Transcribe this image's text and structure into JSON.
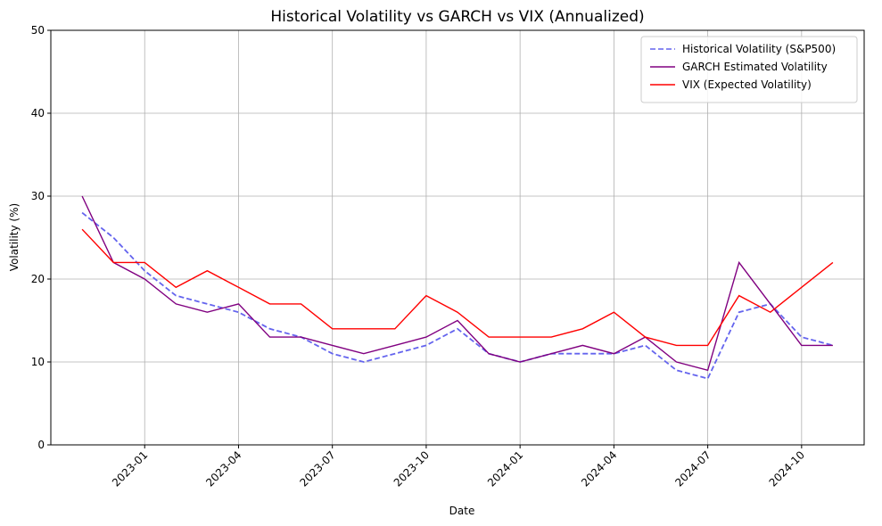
{
  "chart_data": {
    "type": "line",
    "title": "Historical Volatility vs GARCH vs VIX (Annualized)",
    "x_label": "Date",
    "y_label": "Volatility (%)",
    "x": [
      "2022-11",
      "2022-12",
      "2023-01",
      "2023-02",
      "2023-03",
      "2023-04",
      "2023-05",
      "2023-06",
      "2023-07",
      "2023-08",
      "2023-09",
      "2023-10",
      "2023-11",
      "2023-12",
      "2024-01",
      "2024-02",
      "2024-03",
      "2024-04",
      "2024-05",
      "2024-06",
      "2024-07",
      "2024-08",
      "2024-09",
      "2024-10",
      "2024-11"
    ],
    "series": [
      {
        "name": "Historical Volatility (S&P500)",
        "color": "#6464ee",
        "linestyle": "dashed",
        "values": [
          28,
          25,
          21,
          18,
          17,
          16,
          14,
          13,
          11,
          10,
          11,
          12,
          14,
          11,
          10,
          11,
          11,
          11,
          12,
          9,
          8,
          16,
          17,
          13,
          12
        ]
      },
      {
        "name": "GARCH Estimated Volatility",
        "color": "#800080",
        "linestyle": "solid",
        "values": [
          30,
          22,
          20,
          17,
          16,
          17,
          13,
          13,
          12,
          11,
          12,
          13,
          15,
          11,
          10,
          11,
          12,
          11,
          13,
          10,
          9,
          22,
          17,
          12,
          12
        ]
      },
      {
        "name": "VIX (Expected Volatility)",
        "color": "#ff0000",
        "linestyle": "solid",
        "values": [
          26,
          22,
          22,
          19,
          21,
          19,
          17,
          17,
          14,
          14,
          14,
          18,
          16,
          13,
          13,
          13,
          14,
          16,
          13,
          12,
          12,
          18,
          16,
          19,
          22
        ]
      }
    ],
    "xlim": [
      "2022-10",
      "2024-12"
    ],
    "xticks": [
      "2023-01",
      "2023-04",
      "2023-07",
      "2023-10",
      "2024-01",
      "2024-04",
      "2024-07",
      "2024-10"
    ],
    "ylim": [
      0,
      50
    ],
    "yticks": [
      0,
      10,
      20,
      30,
      40,
      50
    ],
    "grid": true,
    "legend": "upper right"
  }
}
